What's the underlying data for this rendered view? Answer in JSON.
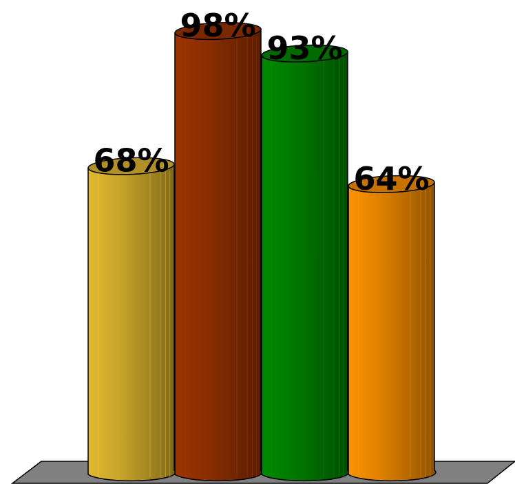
{
  "chart_data": {
    "type": "bar",
    "style": "3d-cylinder",
    "title": "",
    "xlabel": "",
    "ylabel": "",
    "categories": [],
    "values": [
      68,
      98,
      93,
      64
    ],
    "labels": [
      "68%",
      "98%",
      "93%",
      "64%"
    ],
    "colors": [
      "#c9a52a",
      "#8b2e00",
      "#007a00",
      "#e08200"
    ],
    "ylim": [
      0,
      100
    ],
    "grid": false,
    "legend": "none",
    "floor_color": "#808080"
  }
}
